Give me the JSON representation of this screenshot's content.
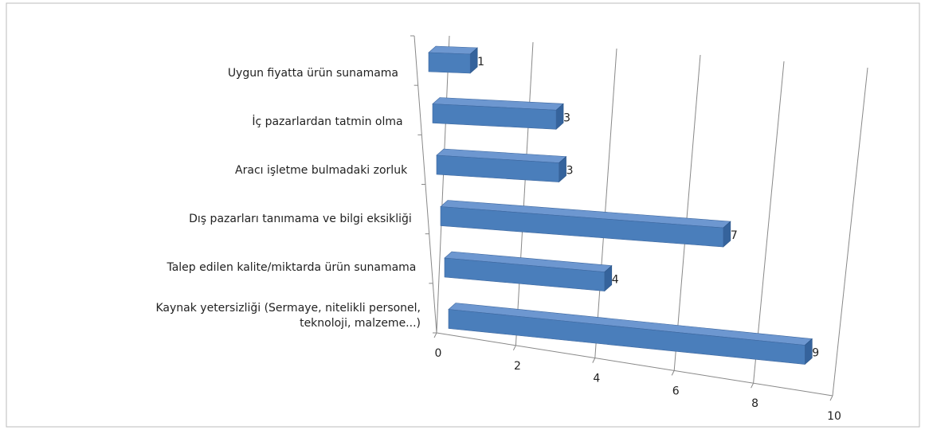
{
  "chart_data": {
    "type": "bar3d",
    "orientation": "horizontal",
    "categories": [
      "Uygun fiyatta ürün sunamama",
      "İç pazarlardan tatmin olma",
      "Aracı işletme bulmadaki zorluk",
      "Dış pazarları tanımama ve bilgi eksikliği",
      "Talep edilen kalite/miktarda ürün sunamama",
      "Kaynak yetersizliği (Sermaye, nitelikli personel, teknoloji, malzeme...)"
    ],
    "values": [
      1,
      3,
      3,
      7,
      4,
      9
    ],
    "color": "#4a7ebb",
    "xlim": [
      0,
      10
    ],
    "xticks": [
      0,
      2,
      4,
      6,
      8,
      10
    ],
    "grid": true
  }
}
